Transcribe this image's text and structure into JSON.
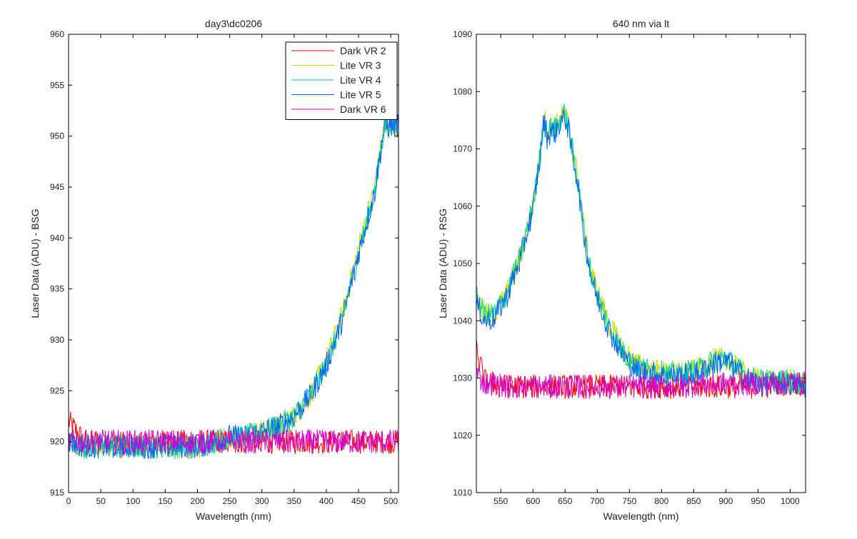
{
  "chart_data": [
    {
      "type": "line",
      "title": "day3\\dc0206",
      "xlabel": "Wavelength (nm)",
      "ylabel": "Laser Data (ADU) - BSG",
      "xlim": [
        0,
        512
      ],
      "ylim": [
        915,
        960
      ],
      "xticks": [
        0,
        50,
        100,
        150,
        200,
        250,
        300,
        350,
        400,
        450,
        500
      ],
      "yticks": [
        915,
        920,
        925,
        930,
        935,
        940,
        945,
        950,
        955,
        960
      ],
      "grid": false,
      "legend_position": "top-right",
      "x": [
        0,
        25,
        50,
        75,
        100,
        125,
        150,
        175,
        200,
        225,
        250,
        275,
        300,
        325,
        350,
        375,
        400,
        425,
        450,
        475,
        490
      ],
      "series": [
        {
          "name": "Dark VR 2",
          "color": "#ff0000",
          "values": [
            922,
            920,
            920,
            920,
            919.5,
            920,
            920,
            920,
            920,
            920,
            920,
            920,
            920,
            920,
            920,
            920,
            920,
            920,
            920,
            920,
            920
          ]
        },
        {
          "name": "Lite VR 3",
          "color": "#c8dc00",
          "values": [
            920,
            919.5,
            919.5,
            919.5,
            919.5,
            919.5,
            919.5,
            919.5,
            919.5,
            920,
            920.5,
            920.5,
            921,
            921.5,
            922.5,
            924.5,
            928,
            932.5,
            939,
            945,
            951
          ]
        },
        {
          "name": "Lite VR 4",
          "color": "#00d890",
          "values": [
            920,
            919.5,
            919.5,
            919.5,
            919.5,
            919.5,
            919.5,
            919.5,
            919.5,
            920,
            920.5,
            920.5,
            921,
            921.5,
            922.5,
            924.5,
            927.5,
            932,
            938.5,
            944.5,
            951
          ]
        },
        {
          "name": "Lite VR 5",
          "color": "#0064ff",
          "values": [
            920,
            919.5,
            919.5,
            919.5,
            919.5,
            919.5,
            919.5,
            919.5,
            919.5,
            920,
            920.5,
            920.5,
            921,
            921.5,
            922.5,
            924.5,
            927.5,
            932,
            938.5,
            944.5,
            951
          ]
        },
        {
          "name": "Dark VR 6",
          "color": "#d200d2",
          "values": [
            920,
            920,
            920,
            920,
            920,
            920,
            920,
            920,
            920,
            920,
            920,
            920,
            920,
            920,
            920,
            920,
            920,
            920,
            920,
            920,
            920
          ]
        }
      ]
    },
    {
      "type": "line",
      "title": "640 nm via lt",
      "xlabel": "Wavelength (nm)",
      "ylabel": "Laser Data (ADU) - RSG",
      "xlim": [
        512,
        1024
      ],
      "ylim": [
        1010,
        1090
      ],
      "xticks": [
        550,
        600,
        650,
        700,
        750,
        800,
        850,
        900,
        950,
        1000
      ],
      "yticks": [
        1010,
        1020,
        1030,
        1040,
        1050,
        1060,
        1070,
        1080,
        1090
      ],
      "grid": false,
      "legend_position": "none",
      "x": [
        512,
        525,
        540,
        560,
        580,
        600,
        610,
        617,
        622,
        628,
        635,
        642,
        650,
        655,
        660,
        670,
        680,
        690,
        700,
        720,
        740,
        760,
        780,
        800,
        820,
        840,
        860,
        880,
        900,
        920,
        940,
        960,
        980,
        1000,
        1024
      ],
      "series": [
        {
          "name": "",
          "color": "#ff0000",
          "values": [
            1035,
            1029.5,
            1029,
            1028.5,
            1028.5,
            1028.5,
            1028.5,
            1028.5,
            1028.5,
            1028.5,
            1028.5,
            1028.5,
            1028.5,
            1028.5,
            1028.5,
            1028.5,
            1028.5,
            1028.5,
            1028.5,
            1028.5,
            1028.5,
            1028.5,
            1028.5,
            1028.5,
            1028.5,
            1028.5,
            1028.5,
            1028.5,
            1028.5,
            1028.5,
            1028.5,
            1028.5,
            1029,
            1029,
            1029
          ]
        },
        {
          "name": "",
          "color": "#c8dc00",
          "values": [
            1044,
            1041,
            1041,
            1045,
            1051,
            1060,
            1068,
            1076,
            1073,
            1074,
            1074,
            1075,
            1076,
            1074,
            1071,
            1065,
            1055,
            1049,
            1045,
            1039,
            1035,
            1032.5,
            1031.5,
            1031,
            1031,
            1031,
            1031.5,
            1033,
            1033.5,
            1031.5,
            1030,
            1029.5,
            1029.5,
            1029.5,
            1029
          ]
        },
        {
          "name": "",
          "color": "#00d890",
          "values": [
            1044,
            1041,
            1041,
            1045,
            1051,
            1060,
            1068,
            1075.5,
            1072.5,
            1073.5,
            1073.5,
            1075,
            1076,
            1074,
            1070.5,
            1064.5,
            1055,
            1048.5,
            1044.5,
            1038.5,
            1034.5,
            1032,
            1031.5,
            1031,
            1030.5,
            1031,
            1031.5,
            1033,
            1033.5,
            1031.5,
            1030,
            1029.5,
            1029.5,
            1029.5,
            1029
          ]
        },
        {
          "name": "",
          "color": "#0064ff",
          "values": [
            1043,
            1040,
            1040.5,
            1044.5,
            1050.5,
            1059.5,
            1067.5,
            1075,
            1072,
            1073,
            1073,
            1074.5,
            1075.5,
            1073.5,
            1070,
            1064,
            1054.5,
            1048,
            1044,
            1038,
            1034,
            1031.5,
            1031,
            1030.5,
            1030.5,
            1030.5,
            1031,
            1032.5,
            1033,
            1031,
            1029.5,
            1029,
            1029,
            1029,
            1028.5
          ]
        },
        {
          "name": "",
          "color": "#d200d2",
          "values": [
            1031,
            1029,
            1029,
            1028.5,
            1028.5,
            1028.5,
            1028.5,
            1028.5,
            1028.5,
            1028.5,
            1028.5,
            1028.5,
            1028.5,
            1028.5,
            1028.5,
            1028.5,
            1028.5,
            1028.5,
            1028.5,
            1028.5,
            1028.5,
            1028.5,
            1028.5,
            1028.5,
            1028.5,
            1028.5,
            1029,
            1029,
            1029,
            1029,
            1029,
            1029,
            1029,
            1029.5,
            1029
          ]
        }
      ]
    }
  ]
}
